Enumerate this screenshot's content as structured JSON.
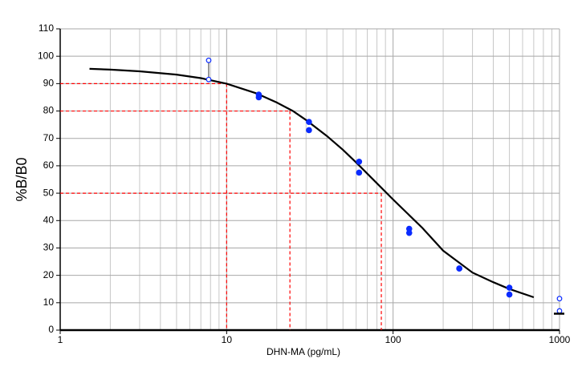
{
  "chart_data": {
    "type": "line",
    "xlabel": "DHN-MA (pg/mL)",
    "ylabel": "%B/B0",
    "xscale": "log",
    "xlim": [
      1,
      1000
    ],
    "xticks": [
      1,
      10,
      100,
      1000
    ],
    "xminorticks": [
      2,
      3,
      4,
      5,
      6,
      7,
      8,
      9,
      20,
      30,
      40,
      50,
      60,
      70,
      80,
      90,
      200,
      300,
      400,
      500,
      600,
      700,
      800,
      900
    ],
    "ylim": [
      0,
      110
    ],
    "yticks": [
      0,
      10,
      20,
      30,
      40,
      50,
      60,
      70,
      80,
      90,
      100,
      110
    ],
    "grid": true,
    "curve": {
      "color": "#000000",
      "x": [
        1.5,
        2,
        3,
        5,
        7,
        10,
        15,
        20,
        25,
        30,
        40,
        50,
        60,
        80,
        100,
        150,
        200,
        300,
        400,
        500,
        700
      ],
      "y": [
        95.4,
        95.1,
        94.5,
        93.3,
        92.0,
        90.0,
        86.5,
        83.1,
        80.0,
        76.7,
        70.9,
        65.8,
        61.2,
        53.6,
        47.7,
        37.3,
        29,
        21,
        17.5,
        15,
        12
      ]
    },
    "points": {
      "color": "#0a2bff",
      "x": [
        15.6,
        15.6,
        31.25,
        31.25,
        62.5,
        62.5,
        125,
        125,
        250,
        250,
        500,
        500
      ],
      "y": [
        86,
        85,
        76,
        73,
        61.5,
        57.5,
        37,
        35.5,
        22.5,
        22.5,
        15.5,
        13
      ]
    },
    "outliers": {
      "color": "#0a2bff",
      "x": [
        7.8,
        7.8,
        1000,
        1000
      ],
      "y": [
        98.5,
        91.5,
        11.5,
        7
      ]
    },
    "nsb_marker": {
      "x": 1000,
      "y": 6
    },
    "reference_lines": {
      "color": "#ff0000",
      "x": [
        10,
        24,
        85
      ],
      "y": [
        90,
        80,
        50
      ]
    }
  }
}
